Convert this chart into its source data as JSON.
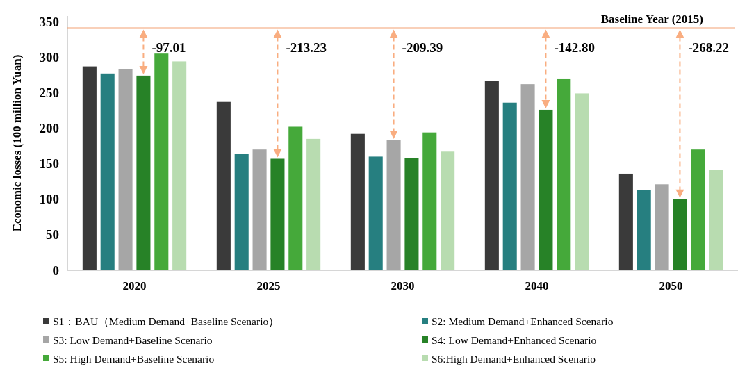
{
  "chart_data": {
    "type": "bar",
    "ylabel": "Economic losses (100 million Yuan)",
    "categories": [
      "2020",
      "2025",
      "2030",
      "2040",
      "2050"
    ],
    "series": [
      {
        "name": "S1：BAU（Medium Demand+Baseline Scenario）",
        "color": "#3a3a3a",
        "values": [
          287,
          237,
          192,
          267,
          136
        ]
      },
      {
        "name": "S2: Medium Demand+Enhanced Scenario",
        "color": "#267f80",
        "values": [
          277,
          164,
          160,
          236,
          113
        ]
      },
      {
        "name": "S3: Low Demand+Baseline Scenario",
        "color": "#a6a6a6",
        "values": [
          283,
          170,
          183,
          262,
          121
        ]
      },
      {
        "name": "S4: Low Demand+Enhanced Scenario",
        "color": "#278227",
        "values": [
          274,
          157,
          158,
          226,
          100
        ]
      },
      {
        "name": "S5: High Demand+Baseline Scenario",
        "color": "#45a93a",
        "values": [
          305,
          202,
          194,
          270,
          170
        ]
      },
      {
        "name": "S6:High Demand+Enhanced Scenario",
        "color": "#b8dcb0",
        "values": [
          294,
          185,
          167,
          249,
          141
        ]
      }
    ],
    "ylim": [
      0,
      358
    ],
    "yticks": [
      0,
      50,
      100,
      150,
      200,
      250,
      300,
      350
    ],
    "ref_lines": [
      {
        "axis": "y",
        "value": 341,
        "label": "Baseline Year (2015)",
        "color": "#f4a274"
      }
    ],
    "annotations": [
      "-97.01",
      "-213.23",
      "-209.39",
      "-142.80",
      "-268.22"
    ],
    "legend": "bottom"
  }
}
